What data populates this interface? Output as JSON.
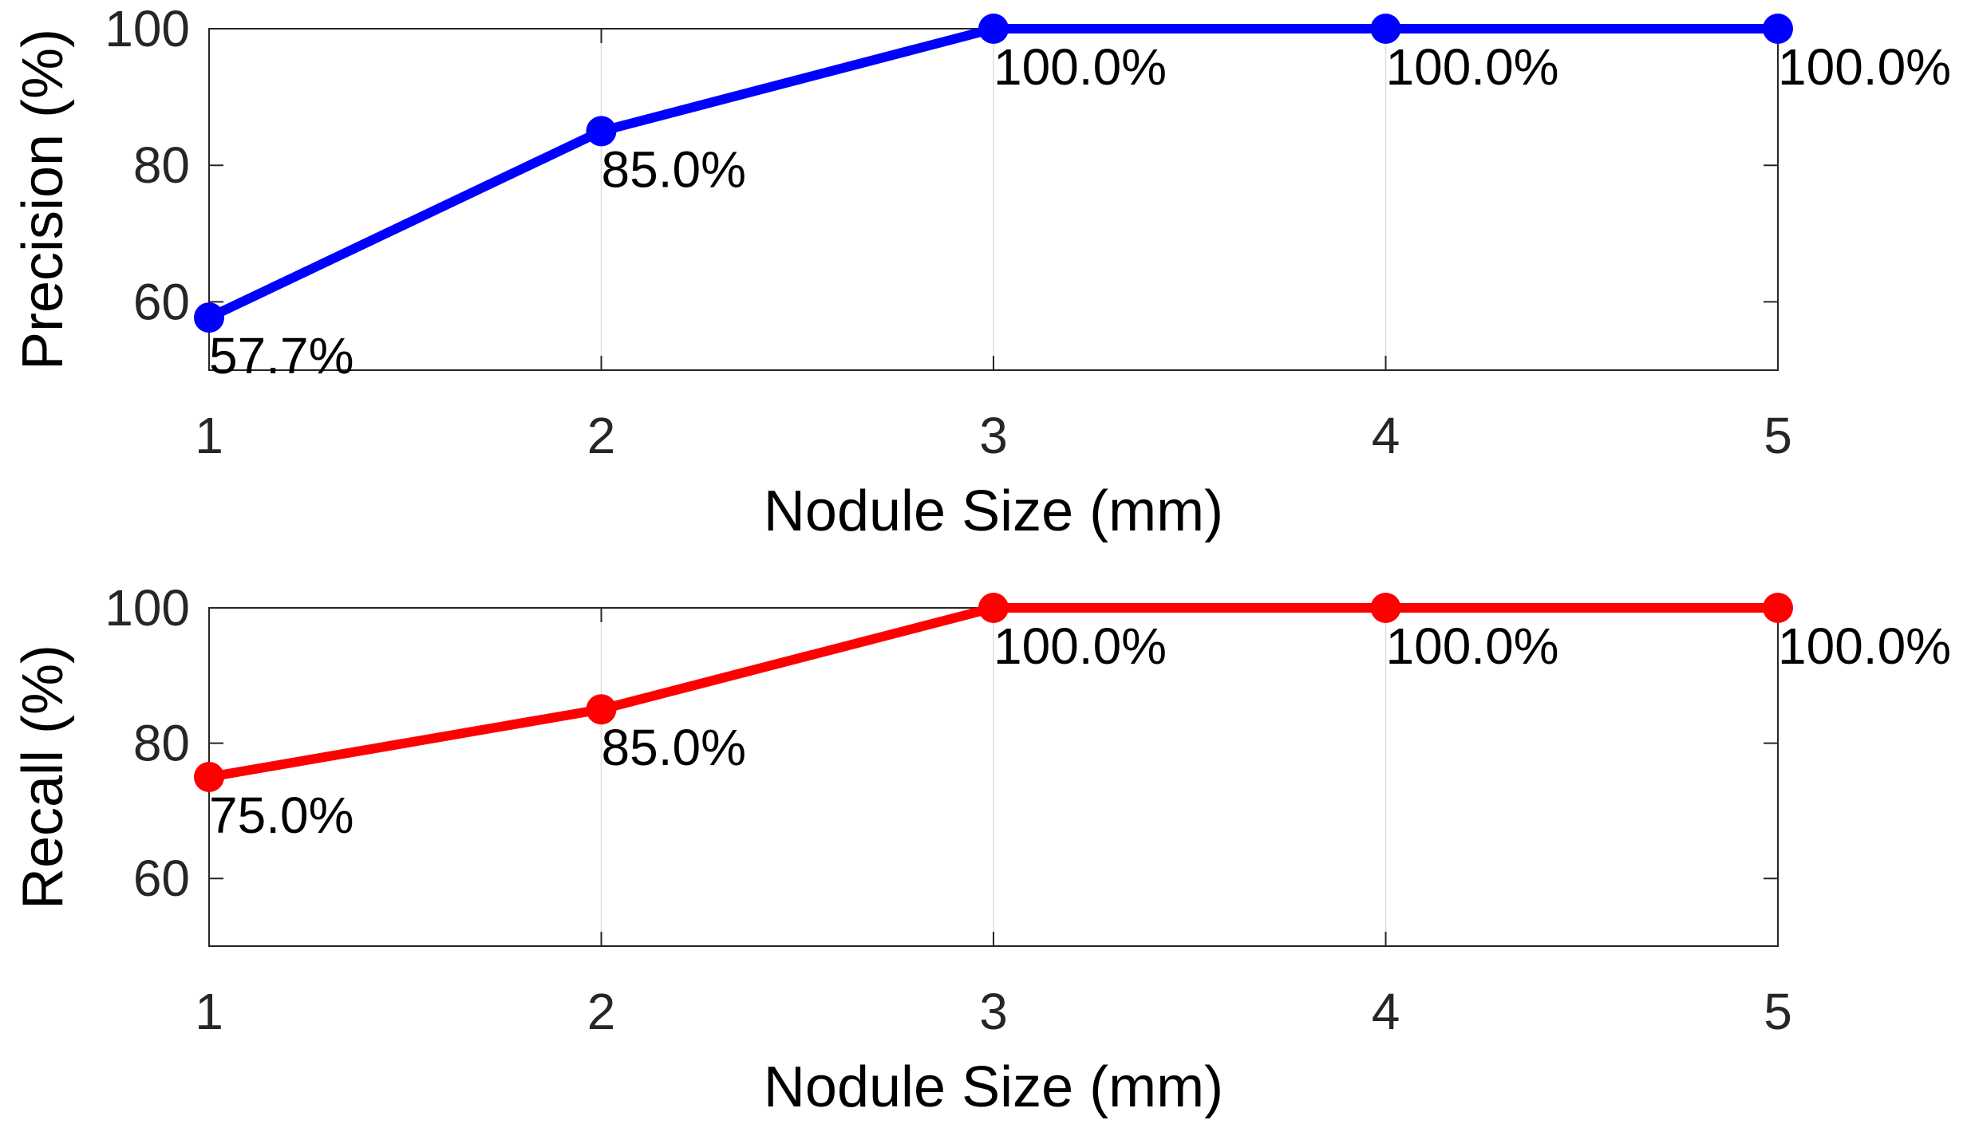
{
  "chart_data": [
    {
      "type": "line",
      "x": [
        1,
        2,
        3,
        4,
        5
      ],
      "series": [
        {
          "values": [
            57.7,
            85.0,
            100.0,
            100.0,
            100.0
          ],
          "color": "#0000ff"
        }
      ],
      "data_labels": [
        "57.7%",
        "85.0%",
        "100.0%",
        "100.0%",
        "100.0%"
      ],
      "xlabel": "Nodule Size (mm)",
      "ylabel": "Precision (%)",
      "xlim": [
        1,
        5
      ],
      "ylim": [
        50,
        100
      ],
      "xticks": [
        1,
        2,
        3,
        4,
        5
      ],
      "yticks": [
        60,
        80,
        100
      ],
      "grid": "x-only"
    },
    {
      "type": "line",
      "x": [
        1,
        2,
        3,
        4,
        5
      ],
      "series": [
        {
          "values": [
            75.0,
            85.0,
            100.0,
            100.0,
            100.0
          ],
          "color": "#ff0000"
        }
      ],
      "data_labels": [
        "75.0%",
        "85.0%",
        "100.0%",
        "100.0%",
        "100.0%"
      ],
      "xlabel": "Nodule Size (mm)",
      "ylabel": "Recall (%)",
      "xlim": [
        1,
        5
      ],
      "ylim": [
        50,
        100
      ],
      "xticks": [
        1,
        2,
        3,
        4,
        5
      ],
      "yticks": [
        60,
        80,
        100
      ],
      "grid": "x-only"
    }
  ]
}
